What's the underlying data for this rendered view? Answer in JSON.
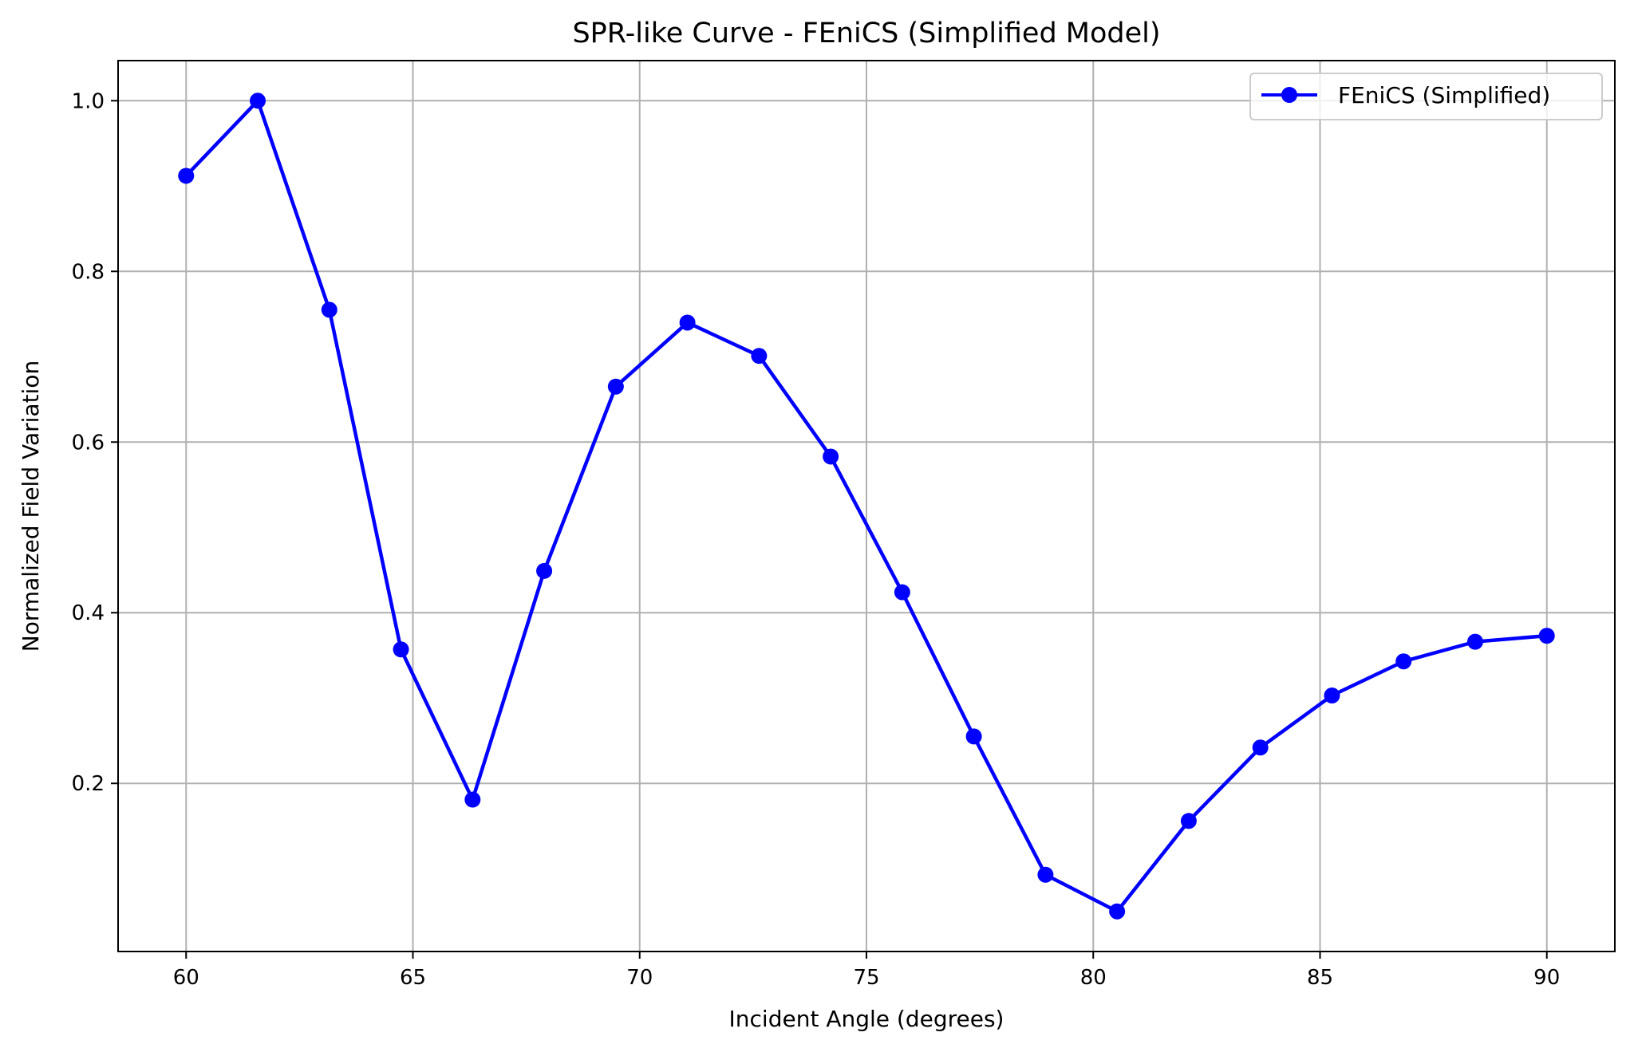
{
  "chart_data": {
    "type": "line",
    "title": "SPR-like Curve - FEniCS (Simplified Model)",
    "xlabel": "Incident Angle (degrees)",
    "ylabel": "Normalized Field Variation",
    "xlim": [
      58.5,
      91.5
    ],
    "ylim": [
      0.003,
      1.047
    ],
    "x_ticks": [
      60,
      65,
      70,
      75,
      80,
      85,
      90
    ],
    "x_tick_labels": [
      "60",
      "65",
      "70",
      "75",
      "80",
      "85",
      "90"
    ],
    "y_ticks": [
      0.2,
      0.4,
      0.6,
      0.8,
      1.0
    ],
    "y_tick_labels": [
      "0.2",
      "0.4",
      "0.6",
      "0.8",
      "1.0"
    ],
    "grid": true,
    "legend_position": "top-right",
    "series": [
      {
        "name": "FEniCS (Simplified)",
        "color": "#0000ff",
        "marker": "circle",
        "x": [
          60.0,
          61.579,
          63.158,
          64.737,
          66.316,
          67.895,
          69.474,
          71.053,
          72.632,
          74.211,
          75.789,
          77.368,
          78.947,
          80.526,
          82.105,
          83.684,
          85.263,
          86.842,
          88.421,
          90.0
        ],
        "y": [
          0.912,
          1.0,
          0.755,
          0.357,
          0.181,
          0.449,
          0.665,
          0.74,
          0.701,
          0.583,
          0.424,
          0.255,
          0.093,
          0.05,
          0.156,
          0.242,
          0.303,
          0.343,
          0.366,
          0.373
        ]
      }
    ]
  }
}
